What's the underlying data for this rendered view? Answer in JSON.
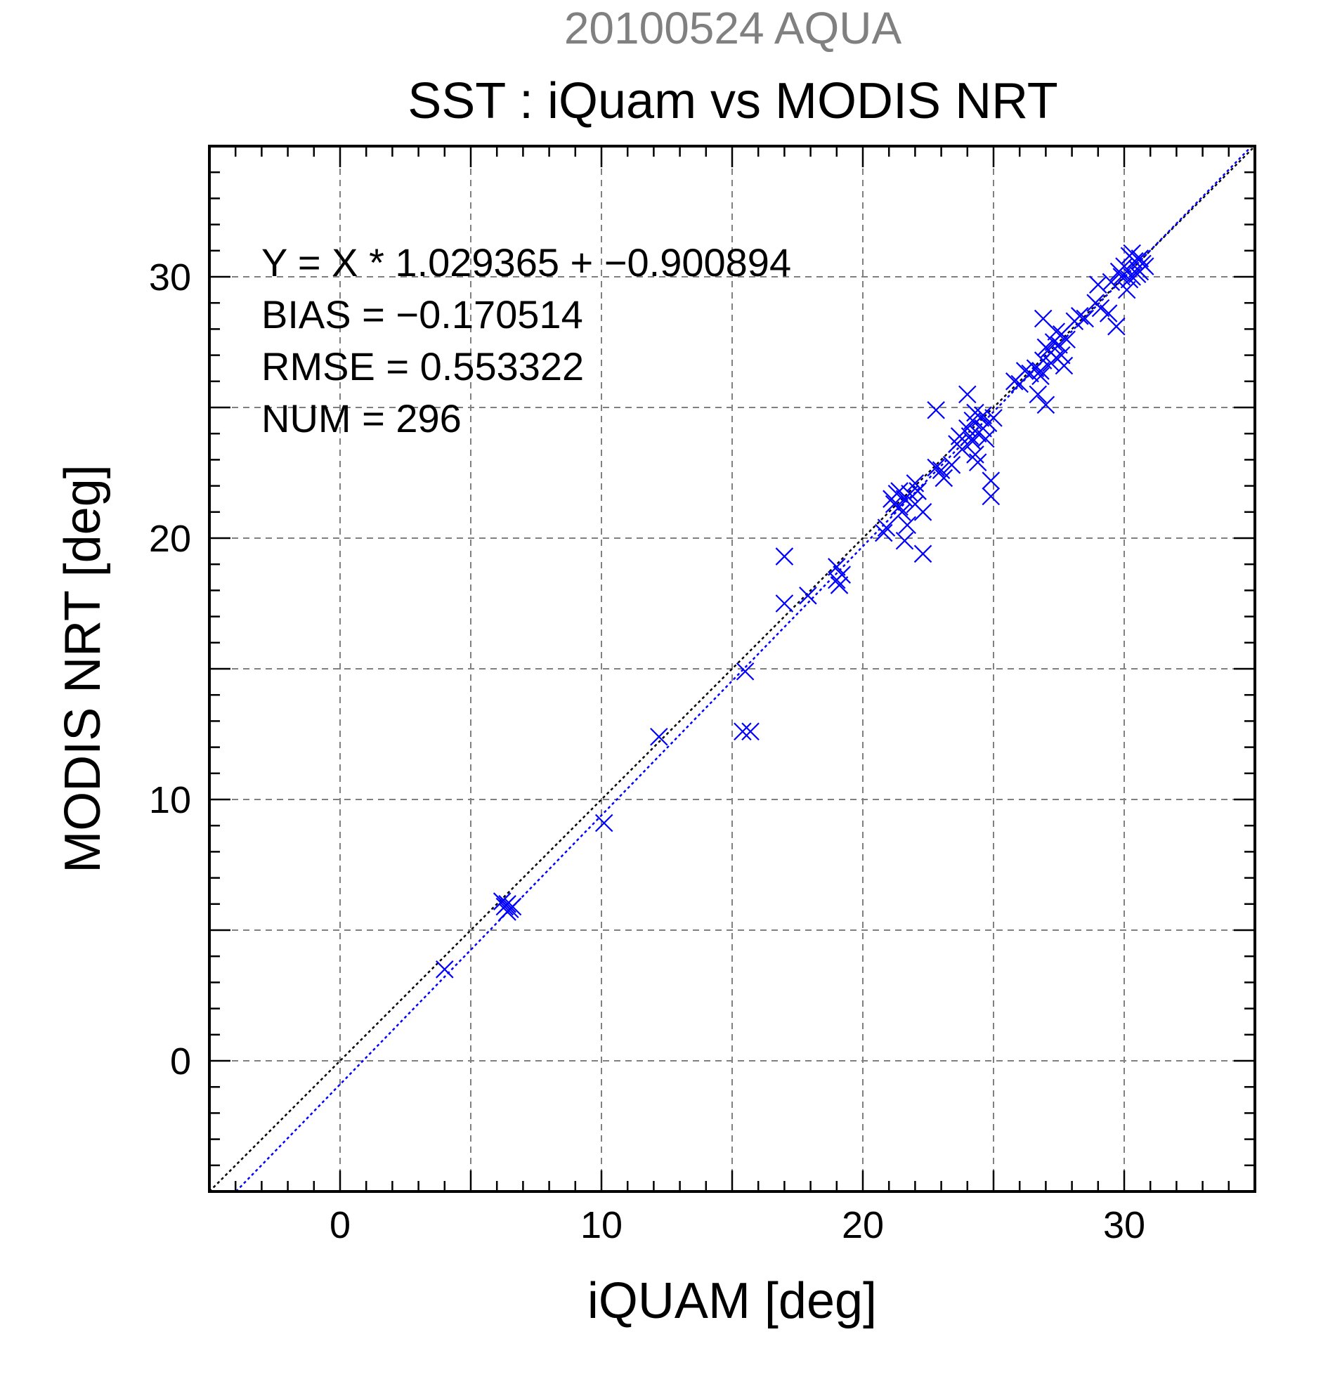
{
  "chart_data": {
    "type": "scatter",
    "supertitle": "20100524 AQUA",
    "title": "SST : iQuam vs MODIS NRT",
    "xlabel": "iQUAM [deg]",
    "ylabel": "MODIS NRT [deg]",
    "xlim": [
      -5,
      35
    ],
    "ylim": [
      -5,
      35
    ],
    "xticks": [
      0,
      10,
      20,
      30
    ],
    "yticks": [
      0,
      10,
      20,
      30
    ],
    "grid": true,
    "stats": {
      "equation": "Y = X * 1.029365 + −0.900894",
      "bias": "BIAS = −0.170514",
      "rmse": "RMSE = 0.553322",
      "num": "NUM = 296"
    },
    "colors": {
      "series": "#0000ff",
      "identity_line": "#000000",
      "fit_line": "#0000ff",
      "supertitle": "#808080",
      "grid": "#808080"
    },
    "lines": {
      "identity": {
        "slope": 1,
        "intercept": 0,
        "style": "dotted"
      },
      "fit": {
        "slope": 1.029365,
        "intercept": -0.900894,
        "style": "dotted"
      }
    },
    "series": [
      {
        "marker": "x",
        "points": [
          [
            4.0,
            3.5
          ],
          [
            6.3,
            5.9
          ],
          [
            6.4,
            6.0
          ],
          [
            6.5,
            5.8
          ],
          [
            6.2,
            6.1
          ],
          [
            6.6,
            5.9
          ],
          [
            6.4,
            5.7
          ],
          [
            10.1,
            9.1
          ],
          [
            12.2,
            12.4
          ],
          [
            15.4,
            12.6
          ],
          [
            15.7,
            12.6
          ],
          [
            15.5,
            14.9
          ],
          [
            17.0,
            19.3
          ],
          [
            17.0,
            17.5
          ],
          [
            17.9,
            17.8
          ],
          [
            19.0,
            18.9
          ],
          [
            19.2,
            18.6
          ],
          [
            19.1,
            18.2
          ],
          [
            19.0,
            18.4
          ],
          [
            20.8,
            20.2
          ],
          [
            20.9,
            20.4
          ],
          [
            21.1,
            21.5
          ],
          [
            21.3,
            21.7
          ],
          [
            21.4,
            21.2
          ],
          [
            21.6,
            21.5
          ],
          [
            21.5,
            21.0
          ],
          [
            21.7,
            20.5
          ],
          [
            21.6,
            19.9
          ],
          [
            22.0,
            21.3
          ],
          [
            22.3,
            19.4
          ],
          [
            22.0,
            22.1
          ],
          [
            22.3,
            21.0
          ],
          [
            22.1,
            21.8
          ],
          [
            21.2,
            21.3
          ],
          [
            21.8,
            21.7
          ],
          [
            21.4,
            21.8
          ],
          [
            22.8,
            24.9
          ],
          [
            22.8,
            22.7
          ],
          [
            23.0,
            22.6
          ],
          [
            23.1,
            22.3
          ],
          [
            23.4,
            22.8
          ],
          [
            23.6,
            23.6
          ],
          [
            23.7,
            23.9
          ],
          [
            23.8,
            23.4
          ],
          [
            24.0,
            25.5
          ],
          [
            24.0,
            24.2
          ],
          [
            24.2,
            24.5
          ],
          [
            24.1,
            23.9
          ],
          [
            24.2,
            23.7
          ],
          [
            24.3,
            23.2
          ],
          [
            24.4,
            24.0
          ],
          [
            24.5,
            24.6
          ],
          [
            24.6,
            24.2
          ],
          [
            24.4,
            22.9
          ],
          [
            24.7,
            23.8
          ],
          [
            24.8,
            24.4
          ],
          [
            24.9,
            22.2
          ],
          [
            24.9,
            21.6
          ],
          [
            25.0,
            24.6
          ],
          [
            24.3,
            24.8
          ],
          [
            24.6,
            24.7
          ],
          [
            25.8,
            26.0
          ],
          [
            26.0,
            25.9
          ],
          [
            26.2,
            26.4
          ],
          [
            26.4,
            26.3
          ],
          [
            26.6,
            26.5
          ],
          [
            26.7,
            25.5
          ],
          [
            26.8,
            26.2
          ],
          [
            26.9,
            26.8
          ],
          [
            26.9,
            28.4
          ],
          [
            27.0,
            25.1
          ],
          [
            27.1,
            27.2
          ],
          [
            27.2,
            26.7
          ],
          [
            27.3,
            27.5
          ],
          [
            27.4,
            26.9
          ],
          [
            27.5,
            27.4
          ],
          [
            27.6,
            27.8
          ],
          [
            27.7,
            26.6
          ],
          [
            27.8,
            27.6
          ],
          [
            27.4,
            27.9
          ],
          [
            27.0,
            27.3
          ],
          [
            26.8,
            26.4
          ],
          [
            27.6,
            27.0
          ],
          [
            28.1,
            28.3
          ],
          [
            28.3,
            28.5
          ],
          [
            28.5,
            28.4
          ],
          [
            28.9,
            29.0
          ],
          [
            29.1,
            28.8
          ],
          [
            29.4,
            28.6
          ],
          [
            29.7,
            28.1
          ],
          [
            29.0,
            29.7
          ],
          [
            29.5,
            29.8
          ],
          [
            29.8,
            30.2
          ],
          [
            30.0,
            30.4
          ],
          [
            30.1,
            29.5
          ],
          [
            30.2,
            30.8
          ],
          [
            30.3,
            30.0
          ],
          [
            30.4,
            30.6
          ],
          [
            30.5,
            30.3
          ],
          [
            30.6,
            30.7
          ],
          [
            30.7,
            30.5
          ],
          [
            30.8,
            30.4
          ],
          [
            30.2,
            29.9
          ],
          [
            30.3,
            30.9
          ],
          [
            30.5,
            30.1
          ],
          [
            29.9,
            30.0
          ],
          [
            30.6,
            30.2
          ]
        ]
      }
    ]
  }
}
